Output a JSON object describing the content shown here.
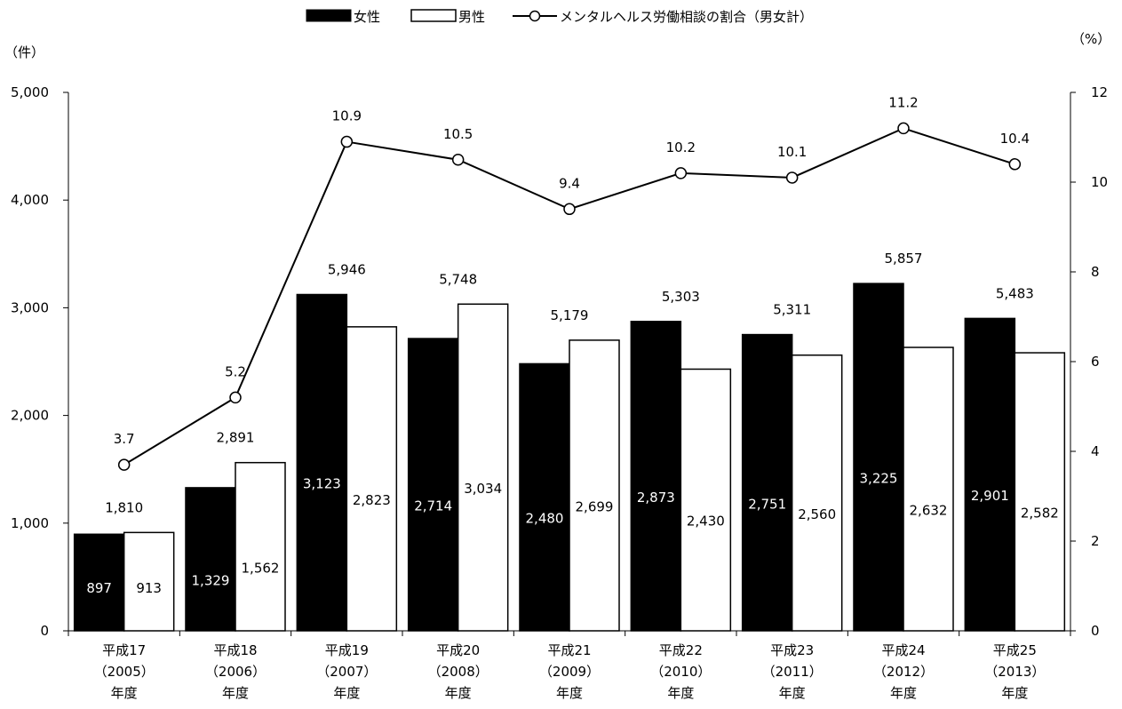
{
  "chart_data": {
    "type": "bar",
    "title": "",
    "legend": {
      "placement": "top-center",
      "items": [
        "女性",
        "男性",
        "メンタルヘルス労働相談の割合（男女計）"
      ]
    },
    "y_left": {
      "unit": "（件）",
      "ylim": [
        0,
        5000
      ],
      "ticks": [
        "0",
        "1,000",
        "2,000",
        "3,000",
        "4,000",
        "5,000"
      ]
    },
    "y_right": {
      "unit": "（%）",
      "ylim": [
        0,
        12
      ],
      "ticks": [
        "0",
        "2",
        "4",
        "6",
        "8",
        "10",
        "12"
      ]
    },
    "categories": [
      [
        "平成17",
        "（2005）",
        "年度"
      ],
      [
        "平成18",
        "（2006）",
        "年度"
      ],
      [
        "平成19",
        "（2007）",
        "年度"
      ],
      [
        "平成20",
        "（2008）",
        "年度"
      ],
      [
        "平成21",
        "（2009）",
        "年度"
      ],
      [
        "平成22",
        "（2010）",
        "年度"
      ],
      [
        "平成23",
        "（2011）",
        "年度"
      ],
      [
        "平成24",
        "（2012）",
        "年度"
      ],
      [
        "平成25",
        "（2013）",
        "年度"
      ]
    ],
    "series": [
      {
        "name": "女性",
        "color": "#000000",
        "values": [
          897,
          1329,
          3123,
          2714,
          2480,
          2873,
          2751,
          3225,
          2901
        ],
        "labels": [
          "897",
          "1,329",
          "3,123",
          "2,714",
          "2,480",
          "2,873",
          "2,751",
          "3,225",
          "2,901"
        ]
      },
      {
        "name": "男性",
        "color": "#ffffff",
        "values": [
          913,
          1562,
          2823,
          3034,
          2699,
          2430,
          2560,
          2632,
          2582
        ],
        "labels": [
          "913",
          "1,562",
          "2,823",
          "3,034",
          "2,699",
          "2,430",
          "2,560",
          "2,632",
          "2,582"
        ]
      },
      {
        "name": "メンタルヘルス労働相談の割合（男女計）",
        "type": "line",
        "axis": "right",
        "values": [
          3.7,
          5.2,
          10.9,
          10.5,
          9.4,
          10.2,
          10.1,
          11.2,
          10.4
        ],
        "labels": [
          "3.7",
          "5.2",
          "10.9",
          "10.5",
          "9.4",
          "10.2",
          "10.1",
          "11.2",
          "10.4"
        ]
      }
    ],
    "totals": {
      "values": [
        1810,
        2891,
        5946,
        5748,
        5179,
        5303,
        5311,
        5857,
        5483
      ],
      "labels": [
        "1,810",
        "2,891",
        "5,946",
        "5,748",
        "5,179",
        "5,303",
        "5,311",
        "5,857",
        "5,483"
      ]
    },
    "grid": false
  }
}
